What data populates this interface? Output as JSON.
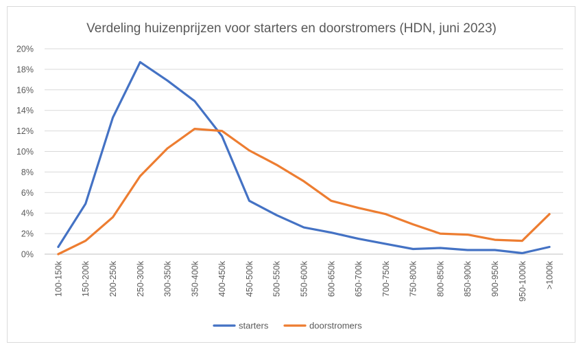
{
  "chart_data": {
    "type": "line",
    "title": "Verdeling huizenprijzen voor starters en doorstromers (HDN, juni 2023)",
    "xlabel": "",
    "ylabel": "",
    "categories": [
      "100-150k",
      "150-200k",
      "200-250k",
      "250-300k",
      "300-350k",
      "350-400k",
      "400-450k",
      "450-500k",
      "500-550k",
      "550-600k",
      "600-650k",
      "650-700k",
      "700-750k",
      "750-800k",
      "800-850k",
      "850-900k",
      "900-950k",
      "950-1000k",
      ">1000k"
    ],
    "ylim": [
      0,
      20
    ],
    "yticks": [
      0,
      2,
      4,
      6,
      8,
      10,
      12,
      14,
      16,
      18,
      20
    ],
    "ytick_labels": [
      "0%",
      "2%",
      "4%",
      "6%",
      "8%",
      "10%",
      "12%",
      "14%",
      "16%",
      "18%",
      "20%"
    ],
    "grid": true,
    "legend_position": "bottom",
    "series": [
      {
        "name": "starters",
        "color": "#4472c4",
        "values": [
          0.7,
          4.9,
          13.3,
          18.7,
          16.9,
          14.9,
          11.5,
          5.2,
          3.8,
          2.6,
          2.1,
          1.5,
          1.0,
          0.5,
          0.6,
          0.4,
          0.4,
          0.1,
          0.7
        ]
      },
      {
        "name": "doorstromers",
        "color": "#ed7d31",
        "values": [
          0.0,
          1.3,
          3.6,
          7.6,
          10.3,
          12.2,
          12.0,
          10.1,
          8.7,
          7.1,
          5.2,
          4.5,
          3.9,
          2.9,
          2.0,
          1.9,
          1.4,
          1.3,
          3.9
        ]
      }
    ]
  }
}
